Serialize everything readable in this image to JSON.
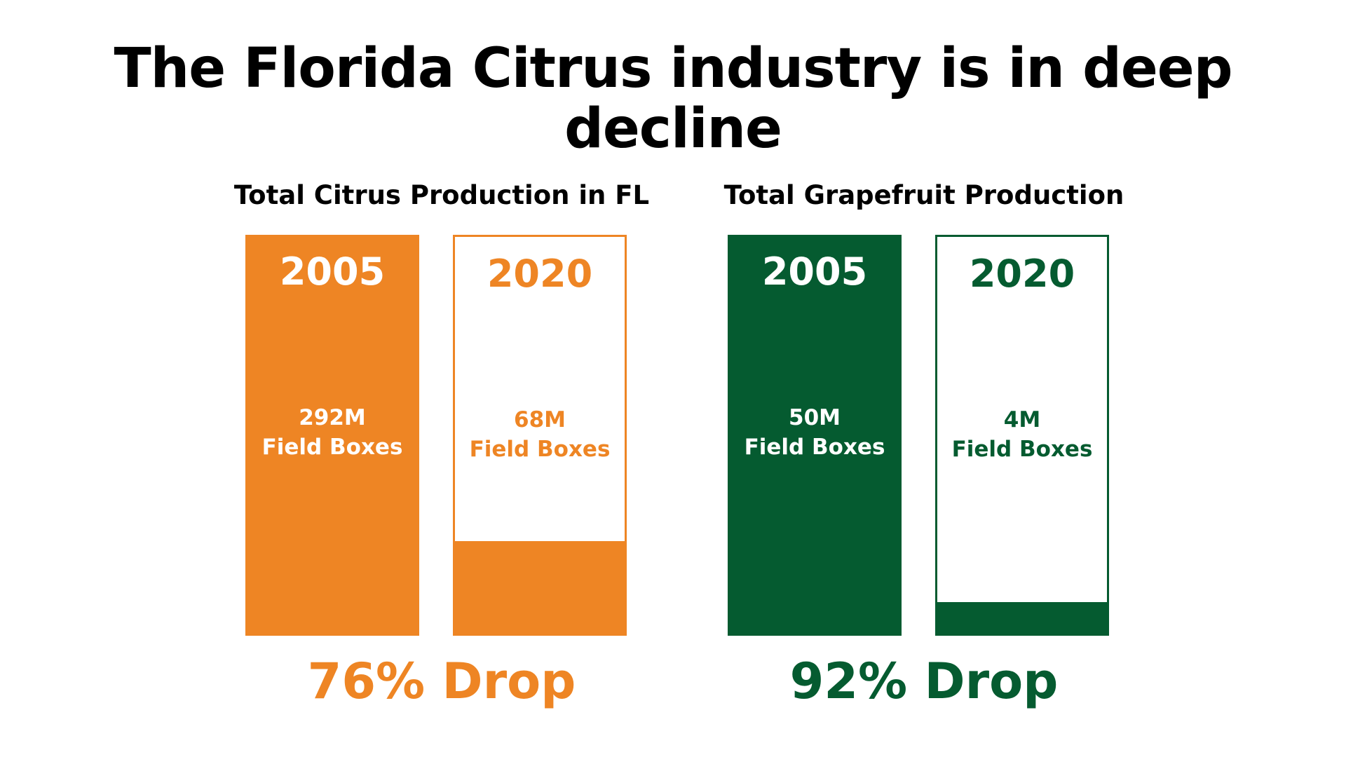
{
  "title": "The Florida Citrus industry is in deep decline",
  "chart_data": [
    {
      "type": "bar",
      "title": "Total Citrus Production in FL",
      "categories": [
        "2005",
        "2020"
      ],
      "values": [
        292,
        68
      ],
      "value_labels": [
        "292M",
        "68M"
      ],
      "unit_label": "Field Boxes",
      "ylim": [
        0,
        292
      ],
      "color": "#EE8524",
      "annotation": "76% Drop"
    },
    {
      "type": "bar",
      "title": "Total Grapefruit Production",
      "categories": [
        "2005",
        "2020"
      ],
      "values": [
        50,
        4
      ],
      "value_labels": [
        "50M",
        "4M"
      ],
      "unit_label": "Field Boxes",
      "ylim": [
        0,
        50
      ],
      "color": "#055B30",
      "annotation": "92% Drop"
    }
  ]
}
